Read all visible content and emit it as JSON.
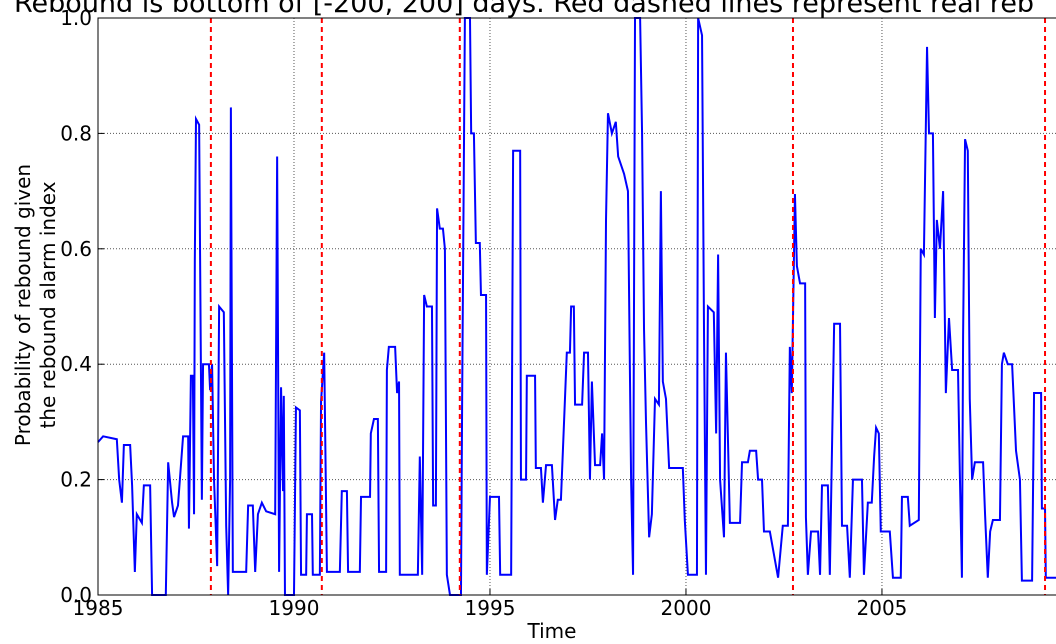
{
  "chart_data": {
    "type": "line",
    "title": "Rebound is bottom of [-200, 200] days. Red dashed lines represent real reb",
    "xlabel": "Time",
    "ylabel": [
      "Probability of rebound given",
      "the rebound alarm index"
    ],
    "xlim": [
      1985,
      2009.44
    ],
    "ylim": [
      0,
      1
    ],
    "xticks": [
      1985,
      1990,
      1995,
      2000,
      2005
    ],
    "yticks": [
      {
        "value": 0,
        "label": "0.0"
      },
      0.2,
      0.4,
      0.6,
      0.8,
      {
        "value": 1,
        "label": "1.0"
      }
    ],
    "grid": true,
    "vlines": {
      "color": "#ff0000",
      "values": [
        1987.88,
        1990.71,
        1994.23,
        2002.73,
        2009.16
      ]
    },
    "x": [
      1985,
      1985.13,
      1985.48,
      1985.54,
      1985.61,
      1985.66,
      1985.82,
      1985.87,
      1985.94,
      1985.99,
      1986.12,
      1986.17,
      1986.33,
      1986.38,
      1986.73,
      1986.79,
      1986.89,
      1986.94,
      1987.04,
      1987.17,
      1987.3,
      1987.32,
      1987.37,
      1987.42,
      1987.45,
      1987.47,
      1987.5,
      1987.58,
      1987.65,
      1987.68,
      1987.83,
      1987.86,
      1987.91,
      1987.96,
      1988.04,
      1988.09,
      1988.21,
      1988.27,
      1988.32,
      1988.37,
      1988.39,
      1988.44,
      1988.78,
      1988.83,
      1988.95,
      1989.01,
      1989.08,
      1989.18,
      1989.29,
      1989.52,
      1989.57,
      1989.62,
      1989.67,
      1989.72,
      1989.74,
      1989.77,
      1990,
      1990.05,
      1990.15,
      1990.18,
      1990.31,
      1990.33,
      1990.46,
      1990.48,
      1990.66,
      1990.69,
      1990.77,
      1990.84,
      1991.17,
      1991.22,
      1991.35,
      1991.38,
      1991.68,
      1991.71,
      1991.94,
      1991.96,
      1992.04,
      1992.14,
      1992.17,
      1992.35,
      1992.37,
      1992.42,
      1992.58,
      1992.63,
      1992.68,
      1992.7,
      1993.16,
      1993.21,
      1993.27,
      1993.32,
      1993.39,
      1993.52,
      1993.55,
      1993.62,
      1993.65,
      1993.72,
      1993.8,
      1993.85,
      1993.9,
      1993.98,
      1994.26,
      1994.29,
      1994.36,
      1994.49,
      1994.52,
      1994.59,
      1994.64,
      1994.74,
      1994.77,
      1994.9,
      1994.92,
      1995,
      1995.23,
      1995.26,
      1995.54,
      1995.59,
      1995.77,
      1995.79,
      1995.92,
      1995.94,
      1996.15,
      1996.17,
      1996.3,
      1996.35,
      1996.43,
      1996.58,
      1996.66,
      1996.73,
      1996.81,
      1996.86,
      1996.96,
      1997.04,
      1997.07,
      1997.14,
      1997.17,
      1997.35,
      1997.4,
      1997.5,
      1997.55,
      1997.6,
      1997.68,
      1997.81,
      1997.86,
      1997.91,
      1997.96,
      1998.01,
      1998.11,
      1998.21,
      1998.27,
      1998.42,
      1998.52,
      1998.6,
      1998.65,
      1998.7,
      1998.83,
      1998.88,
      1998.93,
      1998.98,
      1999.06,
      1999.13,
      1999.21,
      1999.31,
      1999.36,
      1999.41,
      1999.49,
      1999.57,
      1999.92,
      1999.97,
      2000.05,
      2000.28,
      2000.31,
      2000.41,
      2000.46,
      2000.51,
      2000.56,
      2000.71,
      2000.77,
      2000.82,
      2000.87,
      2000.97,
      2001.02,
      2001.12,
      2001.38,
      2001.43,
      2001.58,
      2001.63,
      2001.79,
      2001.84,
      2001.94,
      2001.99,
      2002.14,
      2002.35,
      2002.47,
      2002.6,
      2002.65,
      2002.7,
      2002.78,
      2002.83,
      2002.91,
      2003.04,
      2003.06,
      2003.11,
      2003.19,
      2003.37,
      2003.42,
      2003.47,
      2003.62,
      2003.67,
      2003.78,
      2003.93,
      2003.98,
      2004.11,
      2004.18,
      2004.26,
      2004.49,
      2004.54,
      2004.64,
      2004.74,
      2004.8,
      2004.85,
      2004.92,
      2004.97,
      2005.2,
      2005.28,
      2005.48,
      2005.51,
      2005.66,
      2005.71,
      2005.94,
      2005.99,
      2006.07,
      2006.15,
      2006.2,
      2006.3,
      2006.35,
      2006.4,
      2006.48,
      2006.56,
      2006.63,
      2006.71,
      2006.79,
      2006.94,
      2006.99,
      2007.04,
      2007.07,
      2007.12,
      2007.19,
      2007.24,
      2007.3,
      2007.37,
      2007.58,
      2007.63,
      2007.7,
      2007.76,
      2007.83,
      2008.01,
      2008.06,
      2008.11,
      2008.21,
      2008.32,
      2008.42,
      2008.52,
      2008.57,
      2008.83,
      2008.88,
      2009.06,
      2009.08,
      2009.16,
      2009.18,
      2009.44
    ],
    "series": [
      {
        "color": "#0000ff",
        "values": [
          0.265,
          0.275,
          0.27,
          0.2,
          0.16,
          0.26,
          0.26,
          0.19,
          0.04,
          0.14,
          0.125,
          0.19,
          0.19,
          0,
          0,
          0.23,
          0.16,
          0.135,
          0.155,
          0.275,
          0.275,
          0.115,
          0.38,
          0.38,
          0.14,
          0.58,
          0.825,
          0.815,
          0.165,
          0.4,
          0.4,
          0.355,
          0.4,
          0.2,
          0.05,
          0.5,
          0.49,
          0.12,
          0,
          0.2,
          0.845,
          0.04,
          0.04,
          0.155,
          0.155,
          0.04,
          0.14,
          0.16,
          0.145,
          0.14,
          0.76,
          0.04,
          0.36,
          0.18,
          0.345,
          0,
          0,
          0.325,
          0.32,
          0.035,
          0.035,
          0.14,
          0.14,
          0.035,
          0.035,
          0.335,
          0.42,
          0.04,
          0.04,
          0.18,
          0.18,
          0.04,
          0.04,
          0.17,
          0.17,
          0.28,
          0.305,
          0.305,
          0.04,
          0.04,
          0.39,
          0.43,
          0.43,
          0.35,
          0.37,
          0.035,
          0.035,
          0.24,
          0.035,
          0.52,
          0.5,
          0.5,
          0.155,
          0.155,
          0.67,
          0.635,
          0.635,
          0.6,
          0.035,
          0,
          0,
          0.34,
          1,
          1,
          0.8,
          0.8,
          0.61,
          0.61,
          0.52,
          0.52,
          0.035,
          0.17,
          0.17,
          0.035,
          0.035,
          0.77,
          0.77,
          0.2,
          0.2,
          0.38,
          0.38,
          0.22,
          0.22,
          0.16,
          0.225,
          0.225,
          0.13,
          0.165,
          0.165,
          0.25,
          0.42,
          0.42,
          0.5,
          0.5,
          0.33,
          0.33,
          0.42,
          0.42,
          0.2,
          0.37,
          0.225,
          0.225,
          0.28,
          0.2,
          0.65,
          0.835,
          0.8,
          0.82,
          0.76,
          0.73,
          0.7,
          0.2,
          0.035,
          1,
          1,
          0.8,
          0.46,
          0.3,
          0.1,
          0.14,
          0.34,
          0.33,
          0.7,
          0.37,
          0.34,
          0.22,
          0.22,
          0.13,
          0.035,
          0.035,
          1,
          0.97,
          0.46,
          0.035,
          0.5,
          0.49,
          0.28,
          0.59,
          0.2,
          0.1,
          0.42,
          0.125,
          0.125,
          0.23,
          0.23,
          0.25,
          0.25,
          0.2,
          0.2,
          0.11,
          0.11,
          0.03,
          0.12,
          0.12,
          0.43,
          0.35,
          0.695,
          0.57,
          0.54,
          0.54,
          0.135,
          0.035,
          0.11,
          0.11,
          0.035,
          0.19,
          0.19,
          0.035,
          0.47,
          0.47,
          0.12,
          0.12,
          0.03,
          0.2,
          0.2,
          0.035,
          0.16,
          0.16,
          0.24,
          0.29,
          0.28,
          0.11,
          0.11,
          0.03,
          0.03,
          0.17,
          0.17,
          0.12,
          0.13,
          0.6,
          0.59,
          0.95,
          0.8,
          0.8,
          0.48,
          0.65,
          0.6,
          0.7,
          0.35,
          0.48,
          0.39,
          0.39,
          0.2,
          0.03,
          0.45,
          0.79,
          0.77,
          0.34,
          0.2,
          0.23,
          0.23,
          0.14,
          0.03,
          0.11,
          0.13,
          0.13,
          0.4,
          0.42,
          0.4,
          0.4,
          0.25,
          0.2,
          0.025,
          0.025,
          0.35,
          0.35,
          0.15,
          0.15,
          0.03,
          0.03
        ]
      }
    ]
  }
}
